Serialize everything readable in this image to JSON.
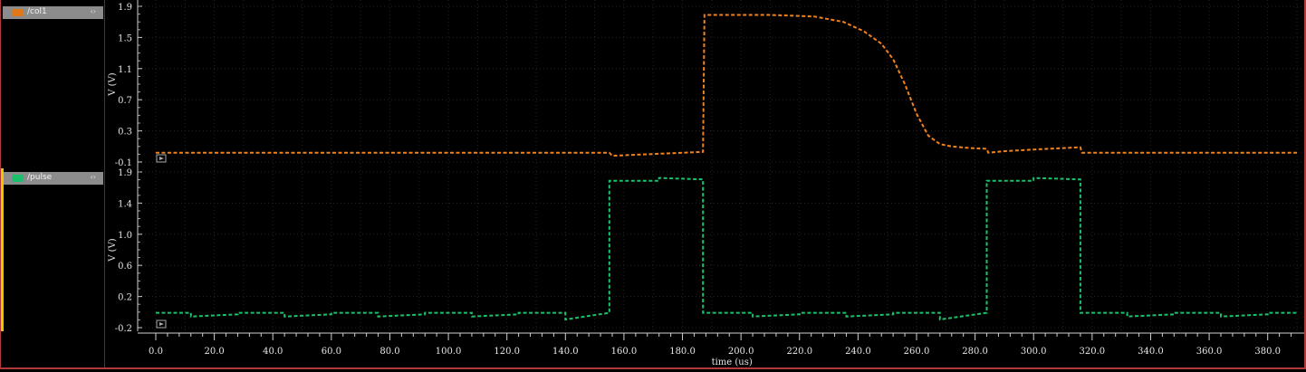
{
  "signals": [
    {
      "name": "/col1",
      "color": "#e07818"
    },
    {
      "name": "/pulse",
      "color": "#19c26a"
    }
  ],
  "header_arrows": "‹›",
  "chart_data": [
    {
      "type": "line",
      "series": [
        {
          "name": "/col1",
          "color": "#f0821e",
          "x": [
            0,
            155,
            156,
            187,
            187.5,
            210,
            225,
            235,
            242,
            248,
            252,
            256,
            260,
            264,
            268,
            272,
            278,
            284,
            284.5,
            290,
            300,
            316,
            316.5,
            390
          ],
          "y": [
            0.02,
            0.02,
            -0.02,
            0.03,
            1.79,
            1.79,
            1.77,
            1.7,
            1.58,
            1.42,
            1.22,
            0.9,
            0.52,
            0.24,
            0.13,
            0.1,
            0.08,
            0.07,
            0.02,
            0.04,
            0.06,
            0.09,
            0.02,
            0.02
          ]
        }
      ],
      "xlim": [
        0,
        390
      ],
      "ylim": [
        -0.1,
        1.9
      ],
      "yticks": [
        "1.9",
        "1.5",
        "1.1",
        "0.7",
        "0.3",
        "-0.1"
      ],
      "ylabel": "V (V)"
    },
    {
      "type": "line",
      "series": [
        {
          "name": "/pulse",
          "color": "#19c26a",
          "x": [
            0,
            12,
            12,
            28,
            28,
            44,
            44,
            60,
            60,
            76,
            76,
            92,
            92,
            108,
            108,
            124,
            124,
            140,
            140,
            155,
            155,
            172,
            172,
            187,
            187,
            204,
            204,
            220,
            220,
            236,
            236,
            252,
            252,
            268,
            268,
            284,
            284,
            300,
            300,
            316,
            316,
            332,
            332,
            348,
            348,
            364,
            364,
            380,
            380,
            390
          ],
          "y": [
            0,
            0,
            -0.05,
            -0.02,
            0,
            0,
            -0.05,
            -0.02,
            0,
            0,
            -0.05,
            -0.02,
            0,
            0,
            -0.05,
            -0.02,
            0,
            0,
            -0.09,
            0,
            1.78,
            1.78,
            1.82,
            1.8,
            0,
            0,
            -0.05,
            -0.02,
            0,
            0,
            -0.05,
            -0.02,
            0,
            0,
            -0.09,
            0,
            1.78,
            1.78,
            1.82,
            1.8,
            0,
            0,
            -0.05,
            -0.02,
            0,
            0,
            -0.05,
            -0.02,
            0,
            0
          ]
        }
      ],
      "xlim": [
        0,
        390
      ],
      "ylim": [
        -0.2,
        1.9
      ],
      "yticks": [
        "1.9",
        "1.4",
        "1.0",
        "0.6",
        "0.2",
        "-0.2"
      ],
      "ylabel": "V (V)"
    }
  ],
  "x_axis": {
    "label": "time (us)",
    "ticks": [
      "0.0",
      "20.0",
      "40.0",
      "60.0",
      "80.0",
      "100.0",
      "120.0",
      "140.0",
      "160.0",
      "180.0",
      "200.0",
      "220.0",
      "240.0",
      "260.0",
      "280.0",
      "300.0",
      "320.0",
      "340.0",
      "360.0",
      "380.0"
    ]
  }
}
